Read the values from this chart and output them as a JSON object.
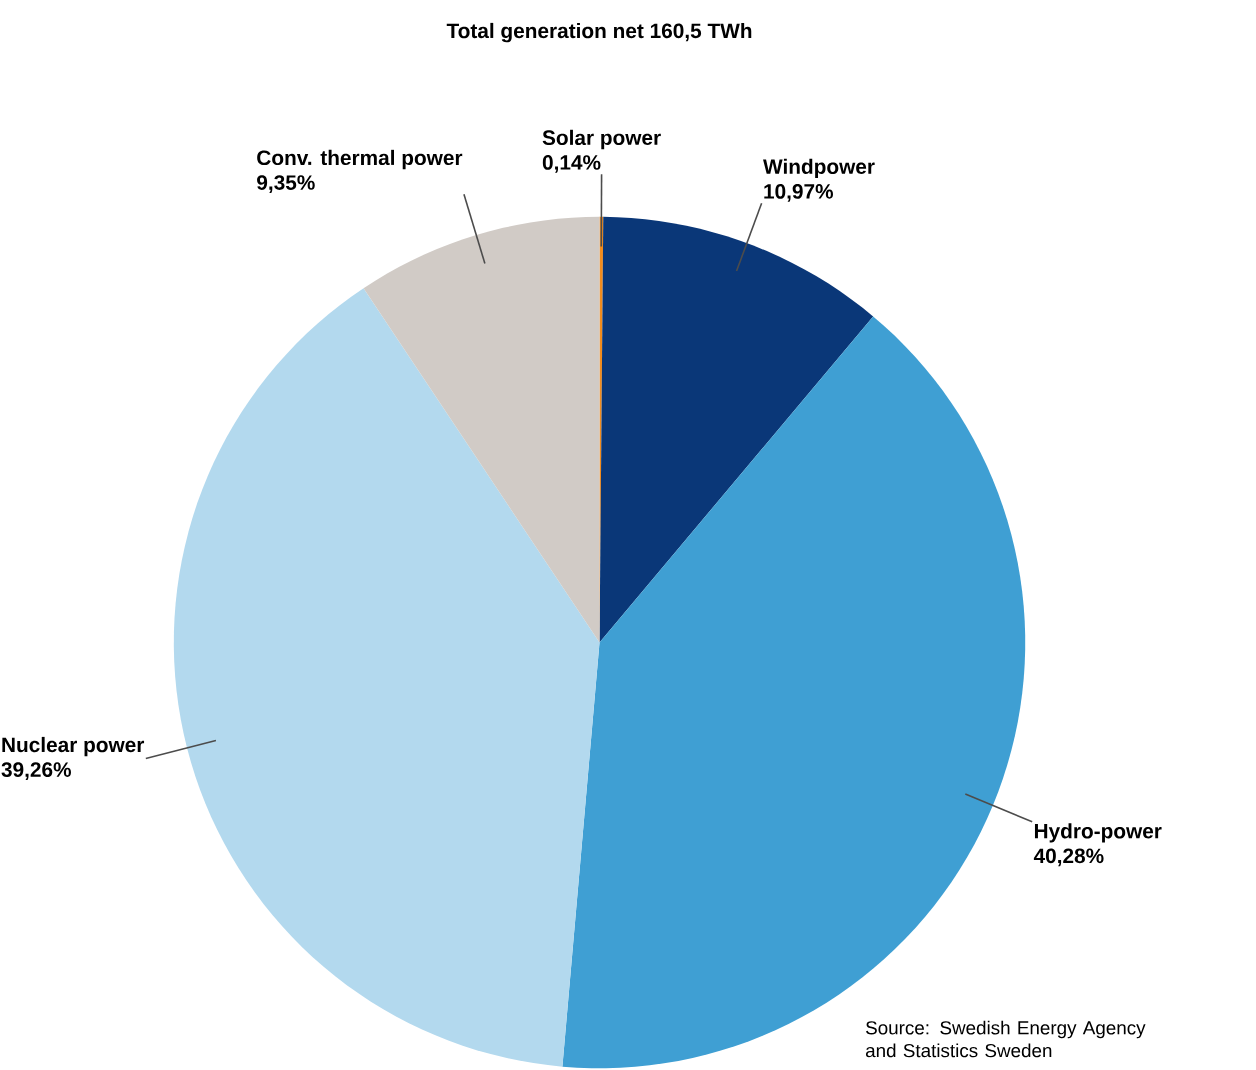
{
  "chart_data": {
    "type": "pie",
    "title": "Total generation net 160,5 TWh",
    "categories": [
      "Solar power",
      "Windpower",
      "Hydro-power",
      "Nuclear power",
      "Conv. thermal power"
    ],
    "values": [
      0.14,
      10.97,
      40.28,
      39.26,
      9.35
    ],
    "value_labels": [
      "0,14%",
      "10,97%",
      "40,28%",
      "39,26%",
      "9,35%"
    ],
    "colors": [
      "#f28c1e",
      "#0a3778",
      "#3f9fd3",
      "#b3d9ee",
      "#d1cbc6"
    ],
    "annotations": [
      "Source: Swedish Energy Agency and Statistics Sweden"
    ]
  }
}
